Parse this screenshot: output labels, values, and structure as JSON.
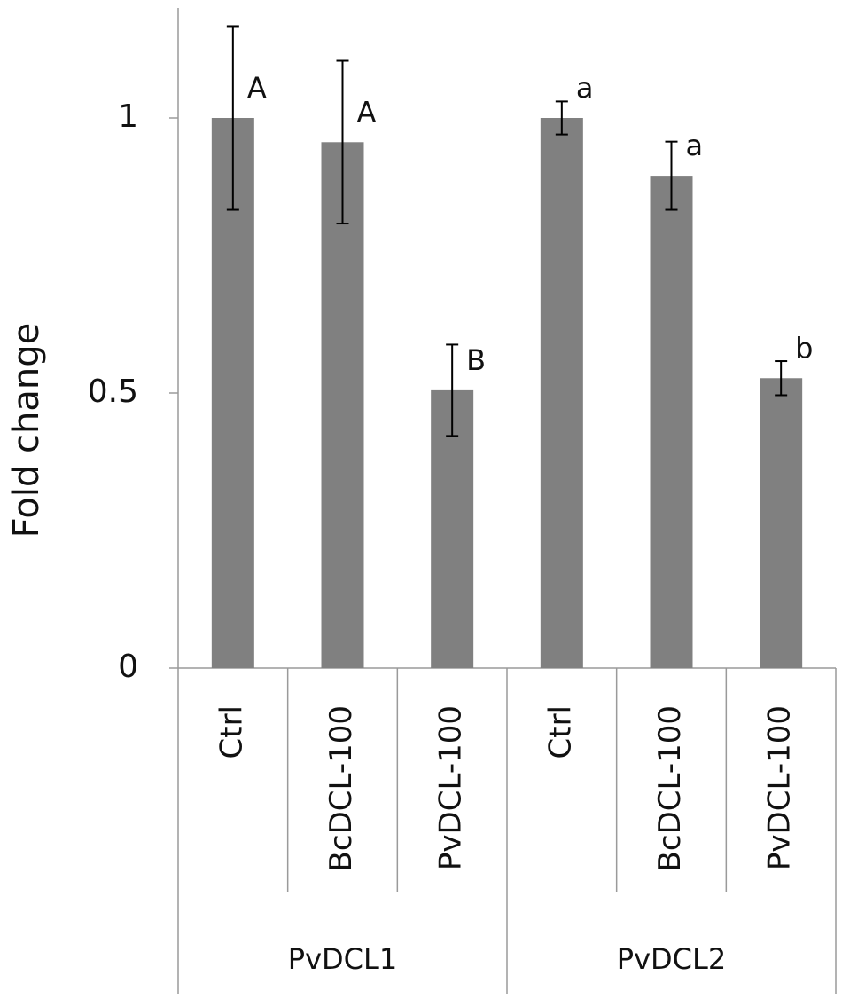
{
  "chart_data": {
    "type": "bar",
    "y_label": "Fold change",
    "categories": [
      "Ctrl",
      "BcDCL-100",
      "PvDCL-100",
      "Ctrl",
      "BcDCL-100",
      "PvDCL-100"
    ],
    "groups": [
      "PvDCL1",
      "PvDCL2"
    ],
    "values": [
      1.0,
      0.956,
      0.505,
      1.0,
      0.895,
      0.527
    ],
    "errors": [
      0.167,
      0.148,
      0.083,
      0.03,
      0.062,
      0.031
    ],
    "annotations": [
      "A",
      "A",
      "B",
      "a",
      "a",
      "b"
    ],
    "color": "#808080",
    "error_color": "#000000",
    "ylim": [
      0,
      1.2
    ],
    "yticks": [
      0,
      0.5,
      1
    ],
    "grid": false
  }
}
